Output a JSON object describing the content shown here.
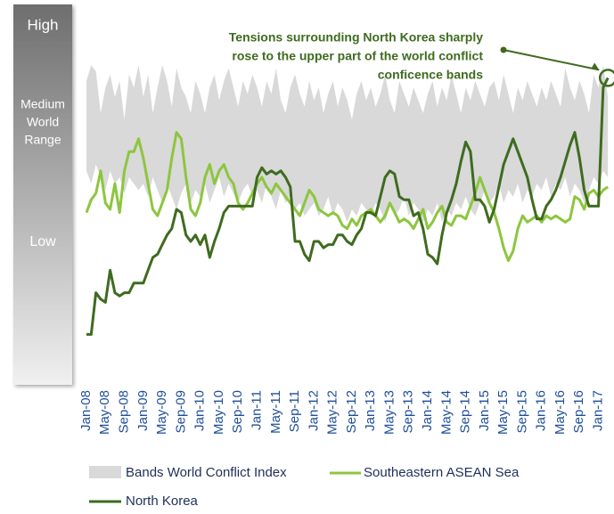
{
  "chart_data": {
    "type": "line",
    "band_labels": {
      "high": "High",
      "medium": [
        "Medium",
        "World",
        "Range"
      ],
      "low": "Low"
    },
    "annotation": [
      "Tensions surrounding North Korea sharply",
      "rose to the upper part of the world conflict",
      "conficence bands"
    ],
    "categories": [
      "Jan-08",
      null,
      null,
      null,
      "May-08",
      null,
      null,
      null,
      "Sep-08",
      null,
      null,
      null,
      "Jan-09",
      null,
      null,
      null,
      "May-09",
      null,
      null,
      null,
      "Sep-09",
      null,
      null,
      null,
      "Jan-10",
      null,
      null,
      null,
      "May-10",
      null,
      null,
      null,
      "Sep-10",
      null,
      null,
      null,
      "Jan-11",
      null,
      null,
      null,
      "May-11",
      null,
      null,
      null,
      "Sep-11",
      null,
      null,
      null,
      "Jan-12",
      null,
      null,
      null,
      "May-12",
      null,
      null,
      null,
      "Sep-12",
      null,
      null,
      null,
      "Jan-13",
      null,
      null,
      null,
      "May-13",
      null,
      null,
      null,
      "Sep-13",
      null,
      null,
      null,
      "Jan-14",
      null,
      null,
      null,
      "May-14",
      null,
      null,
      null,
      "Sep-14",
      null,
      null,
      null,
      "Jan-15",
      null,
      null,
      null,
      "May-15",
      null,
      null,
      null,
      "Sep-15",
      null,
      null,
      null,
      "Jan-16",
      null,
      null,
      null,
      "May-16",
      null,
      null,
      null,
      "Sep-16",
      null,
      null,
      null,
      "Jan-17",
      null,
      null
    ],
    "ylim": [
      0,
      100
    ],
    "series": [
      {
        "name": "Bands World Conflict Index",
        "color": "#d9d9d9",
        "upper": [
          90,
          95,
          93,
          80,
          88,
          92,
          85,
          90,
          78,
          92,
          88,
          95,
          85,
          92,
          80,
          88,
          95,
          90,
          82,
          94,
          88,
          85,
          80,
          90,
          86,
          80,
          88,
          92,
          84,
          90,
          94,
          88,
          82,
          90,
          86,
          92,
          88,
          82,
          90,
          86,
          94,
          84,
          80,
          88,
          92,
          86,
          82,
          90,
          84,
          88,
          80,
          86,
          90,
          82,
          88,
          84,
          78,
          86,
          90,
          84,
          88,
          82,
          86,
          92,
          84,
          80,
          90,
          86,
          82,
          88,
          84,
          80,
          86,
          90,
          82,
          88,
          84,
          92,
          86,
          80,
          88,
          84,
          90,
          86,
          82,
          88,
          90,
          84,
          92,
          86,
          80,
          88,
          84,
          90,
          86,
          82,
          88,
          84,
          90,
          86,
          82,
          94,
          88,
          84,
          90,
          86,
          80,
          92,
          88,
          95,
          85
        ],
        "lower": [
          62,
          58,
          64,
          60,
          56,
          62,
          58,
          60,
          55,
          60,
          58,
          56,
          58,
          54,
          60,
          56,
          52,
          58,
          54,
          50,
          55,
          58,
          52,
          56,
          54,
          58,
          52,
          56,
          60,
          54,
          58,
          55,
          52,
          56,
          58,
          54,
          56,
          52,
          58,
          54,
          50,
          56,
          52,
          54,
          50,
          52,
          48,
          50,
          52,
          48,
          50,
          54,
          48,
          52,
          50,
          46,
          50,
          48,
          52,
          50,
          48,
          52,
          50,
          46,
          52,
          48,
          50,
          54,
          48,
          52,
          50,
          46,
          50,
          48,
          52,
          46,
          50,
          48,
          52,
          50,
          54,
          50,
          48,
          52,
          56,
          52,
          54,
          58,
          52,
          56,
          54,
          58,
          52,
          56,
          54,
          58,
          56,
          60,
          54,
          58,
          56,
          60,
          54,
          58,
          56,
          52,
          56,
          60,
          58,
          62,
          60
        ]
      },
      {
        "name": "Southeastern ASEAN Sea",
        "color": "#8cc63f",
        "values": [
          49,
          53,
          55,
          62,
          52,
          50,
          58,
          49,
          62,
          68,
          68,
          72,
          66,
          58,
          50,
          48,
          52,
          56,
          66,
          74,
          72,
          60,
          50,
          48,
          52,
          60,
          64,
          58,
          62,
          64,
          60,
          58,
          52,
          50,
          52,
          55,
          58,
          60,
          57,
          55,
          58,
          56,
          54,
          52,
          50,
          48,
          52,
          56,
          54,
          50,
          49,
          48,
          49,
          48,
          45,
          44,
          47,
          45,
          48,
          49,
          50,
          48,
          46,
          48,
          52,
          49,
          46,
          47,
          46,
          44,
          47,
          50,
          44,
          46,
          49,
          51,
          46,
          45,
          48,
          48,
          47,
          51,
          55,
          60,
          56,
          52,
          49,
          44,
          38,
          34,
          37,
          44,
          48,
          46,
          47,
          48,
          46,
          48,
          47,
          48,
          47,
          46,
          47,
          54,
          53,
          50,
          55,
          56,
          54,
          56,
          57
        ]
      },
      {
        "name": "North Korea",
        "color": "#3f6b1f",
        "values": [
          11,
          11,
          24,
          22,
          21,
          31,
          24,
          23,
          24,
          24,
          27,
          27,
          27,
          31,
          35,
          36,
          39,
          42,
          44,
          50,
          49,
          42,
          40,
          42,
          39,
          42,
          35,
          40,
          44,
          49,
          51,
          51,
          51,
          51,
          51,
          51,
          60,
          63,
          61,
          62,
          61,
          62,
          60,
          57,
          40,
          40,
          36,
          34,
          40,
          40,
          38,
          39,
          39,
          42,
          42,
          40,
          39,
          42,
          44,
          49,
          49,
          48,
          54,
          60,
          62,
          61,
          54,
          53,
          53,
          48,
          49,
          44,
          36,
          35,
          33,
          42,
          49,
          53,
          58,
          65,
          71,
          68,
          53,
          53,
          51,
          46,
          50,
          57,
          64,
          68,
          72,
          68,
          64,
          60,
          53,
          47,
          47,
          51,
          53,
          56,
          60,
          65,
          70,
          74,
          66,
          56,
          51,
          51,
          51,
          88,
          91
        ]
      }
    ]
  }
}
